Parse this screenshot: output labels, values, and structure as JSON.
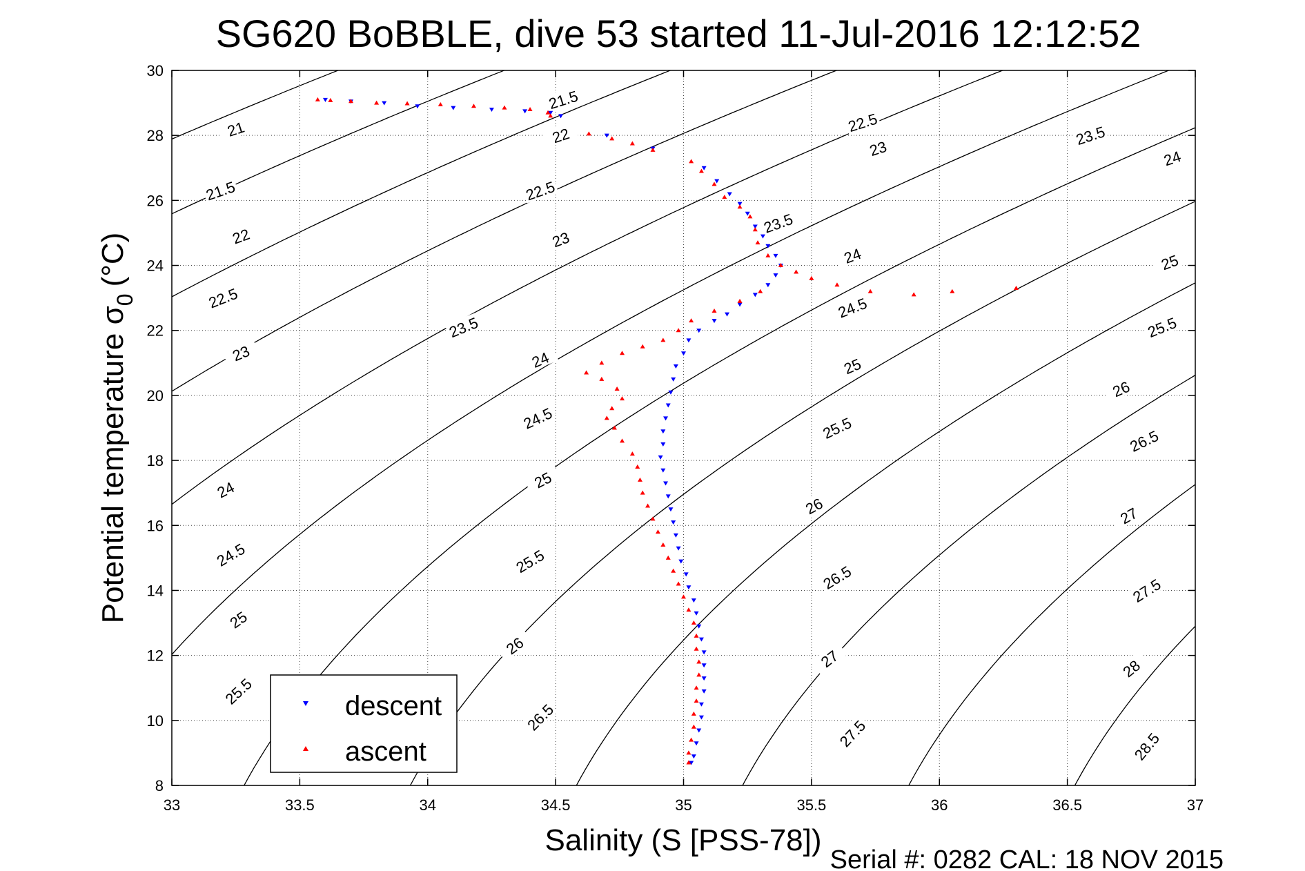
{
  "chart_data": {
    "type": "scatter",
    "title": "SG620 BoBBLE, dive 53 started 11-Jul-2016 12:12:52",
    "xlabel": "Salinity (S [PSS-78])",
    "ylabel_main": "Potential temperature σ",
    "ylabel_sub": "0",
    "ylabel_unit": "(°C)",
    "xlim": [
      33,
      37
    ],
    "ylim": [
      8,
      30
    ],
    "xticks": [
      33,
      33.5,
      34,
      34.5,
      35,
      35.5,
      36,
      36.5,
      37
    ],
    "xtick_labels": [
      "33",
      "33.5",
      "34",
      "34.5",
      "35",
      "35.5",
      "36",
      "36.5",
      "37"
    ],
    "yticks": [
      8,
      10,
      12,
      14,
      16,
      18,
      20,
      22,
      24,
      26,
      28,
      30
    ],
    "ytick_labels": [
      "8",
      "10",
      "12",
      "14",
      "16",
      "18",
      "20",
      "22",
      "24",
      "26",
      "28",
      "30"
    ],
    "grid": true,
    "legend_position": "bottom-left",
    "contours": {
      "levels": [
        21,
        21.5,
        22,
        22.5,
        23,
        23.5,
        24,
        24.5,
        25,
        25.5,
        26,
        26.5,
        27,
        27.5,
        28,
        28.5
      ],
      "level_labels": [
        "21",
        "21.5",
        "22",
        "22.5",
        "23",
        "23.5",
        "24",
        "24.5",
        "25",
        "25.5",
        "26",
        "26.5",
        "27",
        "27.5",
        "28",
        "28.5"
      ],
      "labels": [
        {
          "level": 21.5,
          "x": 34.53,
          "t": 29.1
        },
        {
          "level": 22.5,
          "x": 35.7,
          "t": 28.4
        },
        {
          "level": 21,
          "x": 33.25,
          "t": 28.2
        },
        {
          "level": 22,
          "x": 34.52,
          "t": 28.0
        },
        {
          "level": 23.5,
          "x": 36.59,
          "t": 28.0
        },
        {
          "level": 23,
          "x": 35.76,
          "t": 27.6
        },
        {
          "level": 24,
          "x": 36.91,
          "t": 27.3
        },
        {
          "level": 21.5,
          "x": 33.19,
          "t": 26.3
        },
        {
          "level": 22.5,
          "x": 34.44,
          "t": 26.3
        },
        {
          "level": 23.5,
          "x": 35.37,
          "t": 25.3
        },
        {
          "level": 22,
          "x": 33.27,
          "t": 24.9
        },
        {
          "level": 23,
          "x": 34.52,
          "t": 24.8
        },
        {
          "level": 24,
          "x": 35.66,
          "t": 24.3
        },
        {
          "level": 25,
          "x": 36.9,
          "t": 24.1
        },
        {
          "level": 22.5,
          "x": 33.2,
          "t": 23.0
        },
        {
          "level": 24.5,
          "x": 35.66,
          "t": 22.7
        },
        {
          "level": 23.5,
          "x": 34.14,
          "t": 22.1
        },
        {
          "level": 25.5,
          "x": 36.87,
          "t": 22.1
        },
        {
          "level": 23,
          "x": 33.27,
          "t": 21.3
        },
        {
          "level": 24,
          "x": 34.44,
          "t": 21.1
        },
        {
          "level": 25,
          "x": 35.66,
          "t": 20.9
        },
        {
          "level": 26,
          "x": 36.71,
          "t": 20.2
        },
        {
          "level": 24.5,
          "x": 34.43,
          "t": 19.3
        },
        {
          "level": 25.5,
          "x": 35.6,
          "t": 19.0
        },
        {
          "level": 26.5,
          "x": 36.8,
          "t": 18.6
        },
        {
          "level": 25,
          "x": 34.45,
          "t": 17.4
        },
        {
          "level": 24,
          "x": 33.21,
          "t": 17.1
        },
        {
          "level": 26,
          "x": 35.51,
          "t": 16.6
        },
        {
          "level": 27,
          "x": 36.74,
          "t": 16.3
        },
        {
          "level": 24.5,
          "x": 33.23,
          "t": 15.1
        },
        {
          "level": 25.5,
          "x": 34.4,
          "t": 14.9
        },
        {
          "level": 26.5,
          "x": 35.6,
          "t": 14.4
        },
        {
          "level": 27.5,
          "x": 36.81,
          "t": 14.0
        },
        {
          "level": 25,
          "x": 33.26,
          "t": 13.1
        },
        {
          "level": 26,
          "x": 34.34,
          "t": 12.3
        },
        {
          "level": 27,
          "x": 35.57,
          "t": 11.9
        },
        {
          "level": 28,
          "x": 36.75,
          "t": 11.6
        },
        {
          "level": 25.5,
          "x": 33.26,
          "t": 10.9
        },
        {
          "level": 26.5,
          "x": 34.44,
          "t": 10.1
        },
        {
          "level": 27.5,
          "x": 35.66,
          "t": 9.6
        },
        {
          "level": 28.5,
          "x": 36.81,
          "t": 9.2
        }
      ]
    },
    "series": [
      {
        "name": "descent",
        "color": "#0000ff",
        "marker": "triangle-down",
        "points": [
          [
            34.52,
            28.6
          ],
          [
            34.48,
            28.7
          ],
          [
            34.38,
            28.75
          ],
          [
            34.25,
            28.8
          ],
          [
            34.1,
            28.85
          ],
          [
            33.96,
            28.9
          ],
          [
            33.83,
            29.0
          ],
          [
            33.7,
            29.05
          ],
          [
            33.6,
            29.1
          ],
          [
            34.7,
            28.0
          ],
          [
            34.88,
            27.6
          ],
          [
            35.08,
            27.0
          ],
          [
            35.13,
            26.6
          ],
          [
            35.18,
            26.2
          ],
          [
            35.22,
            25.9
          ],
          [
            35.25,
            25.6
          ],
          [
            35.28,
            25.2
          ],
          [
            35.31,
            24.9
          ],
          [
            35.33,
            24.6
          ],
          [
            35.36,
            24.3
          ],
          [
            35.38,
            24.0
          ],
          [
            35.36,
            23.7
          ],
          [
            35.33,
            23.4
          ],
          [
            35.28,
            23.1
          ],
          [
            35.22,
            22.8
          ],
          [
            35.17,
            22.5
          ],
          [
            35.12,
            22.3
          ],
          [
            35.06,
            22.0
          ],
          [
            35.02,
            21.7
          ],
          [
            35.0,
            21.3
          ],
          [
            34.97,
            20.9
          ],
          [
            34.96,
            20.5
          ],
          [
            34.95,
            20.1
          ],
          [
            34.94,
            19.7
          ],
          [
            34.93,
            19.3
          ],
          [
            34.92,
            18.9
          ],
          [
            34.92,
            18.5
          ],
          [
            34.91,
            18.1
          ],
          [
            34.92,
            17.7
          ],
          [
            34.93,
            17.3
          ],
          [
            34.94,
            16.9
          ],
          [
            34.95,
            16.5
          ],
          [
            34.96,
            16.1
          ],
          [
            34.97,
            15.7
          ],
          [
            34.98,
            15.3
          ],
          [
            34.99,
            14.9
          ],
          [
            35.01,
            14.5
          ],
          [
            35.02,
            14.1
          ],
          [
            35.04,
            13.7
          ],
          [
            35.05,
            13.3
          ],
          [
            35.06,
            12.9
          ],
          [
            35.07,
            12.5
          ],
          [
            35.08,
            12.1
          ],
          [
            35.08,
            11.7
          ],
          [
            35.08,
            11.3
          ],
          [
            35.08,
            10.9
          ],
          [
            35.07,
            10.5
          ],
          [
            35.07,
            10.1
          ],
          [
            35.06,
            9.7
          ],
          [
            35.05,
            9.3
          ],
          [
            35.04,
            8.9
          ],
          [
            35.03,
            8.7
          ]
        ]
      },
      {
        "name": "ascent",
        "color": "#ff0000",
        "marker": "triangle-up",
        "points": [
          [
            33.57,
            29.1
          ],
          [
            33.62,
            29.08
          ],
          [
            33.7,
            29.05
          ],
          [
            33.8,
            29.0
          ],
          [
            33.92,
            28.98
          ],
          [
            34.05,
            28.95
          ],
          [
            34.18,
            28.9
          ],
          [
            34.3,
            28.85
          ],
          [
            34.4,
            28.8
          ],
          [
            34.47,
            28.7
          ],
          [
            34.48,
            28.6
          ],
          [
            34.63,
            28.05
          ],
          [
            34.72,
            27.9
          ],
          [
            34.8,
            27.75
          ],
          [
            34.88,
            27.55
          ],
          [
            35.03,
            27.2
          ],
          [
            35.07,
            26.9
          ],
          [
            35.12,
            26.5
          ],
          [
            35.16,
            26.1
          ],
          [
            35.22,
            25.8
          ],
          [
            35.26,
            25.5
          ],
          [
            35.28,
            25.1
          ],
          [
            35.29,
            24.7
          ],
          [
            35.33,
            24.3
          ],
          [
            35.38,
            24.0
          ],
          [
            35.44,
            23.8
          ],
          [
            35.5,
            23.6
          ],
          [
            35.6,
            23.4
          ],
          [
            35.73,
            23.2
          ],
          [
            35.9,
            23.1
          ],
          [
            36.05,
            23.2
          ],
          [
            36.3,
            23.3
          ],
          [
            35.3,
            23.2
          ],
          [
            35.22,
            22.9
          ],
          [
            35.12,
            22.6
          ],
          [
            35.03,
            22.3
          ],
          [
            34.98,
            22.0
          ],
          [
            34.92,
            21.7
          ],
          [
            34.84,
            21.5
          ],
          [
            34.76,
            21.3
          ],
          [
            34.68,
            21.0
          ],
          [
            34.62,
            20.7
          ],
          [
            34.68,
            20.5
          ],
          [
            34.74,
            20.2
          ],
          [
            34.76,
            19.9
          ],
          [
            34.72,
            19.6
          ],
          [
            34.7,
            19.3
          ],
          [
            34.73,
            19.0
          ],
          [
            34.76,
            18.6
          ],
          [
            34.8,
            18.2
          ],
          [
            34.82,
            17.8
          ],
          [
            34.83,
            17.4
          ],
          [
            34.84,
            17.0
          ],
          [
            34.86,
            16.6
          ],
          [
            34.88,
            16.2
          ],
          [
            34.9,
            15.8
          ],
          [
            34.92,
            15.4
          ],
          [
            34.94,
            15.0
          ],
          [
            34.96,
            14.6
          ],
          [
            34.98,
            14.2
          ],
          [
            35.0,
            13.8
          ],
          [
            35.02,
            13.4
          ],
          [
            35.04,
            13.0
          ],
          [
            35.05,
            12.6
          ],
          [
            35.05,
            12.2
          ],
          [
            35.06,
            11.8
          ],
          [
            35.06,
            11.4
          ],
          [
            35.05,
            11.0
          ],
          [
            35.05,
            10.6
          ],
          [
            35.04,
            10.2
          ],
          [
            35.04,
            9.8
          ],
          [
            35.03,
            9.4
          ],
          [
            35.02,
            9.0
          ],
          [
            35.02,
            8.7
          ]
        ]
      }
    ],
    "legend": {
      "entries": [
        "descent",
        "ascent"
      ]
    }
  },
  "footer": {
    "text": "Serial #: 0282  CAL: 18 NOV 2015"
  },
  "colors": {
    "descent": "#0000ff",
    "ascent": "#ff0000",
    "contour": "#000000",
    "grid": "#444444"
  }
}
